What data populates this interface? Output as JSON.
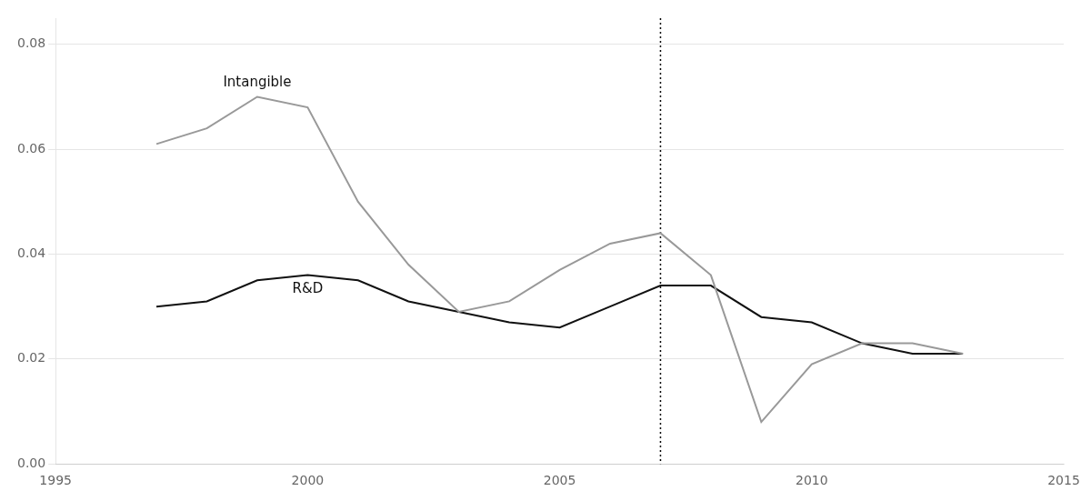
{
  "chart_data": {
    "type": "line",
    "x": [
      1997,
      1998,
      1999,
      2000,
      2001,
      2002,
      2003,
      2004,
      2005,
      2006,
      2007,
      2008,
      2009,
      2010,
      2011,
      2012,
      2013
    ],
    "series": [
      {
        "name": "Intangible",
        "color": "#999999",
        "values": [
          0.061,
          0.064,
          0.07,
          0.068,
          0.05,
          0.038,
          0.029,
          0.031,
          0.037,
          0.042,
          0.044,
          0.036,
          0.008,
          0.019,
          0.023,
          0.023,
          0.021
        ]
      },
      {
        "name": "R&D",
        "color": "#111111",
        "values": [
          0.03,
          0.031,
          0.035,
          0.036,
          0.035,
          0.031,
          0.029,
          0.027,
          0.026,
          0.03,
          0.034,
          0.034,
          0.028,
          0.027,
          0.023,
          0.021,
          0.021
        ]
      }
    ],
    "vlines": [
      {
        "x": 2007,
        "color": "#000000",
        "line_style": "dotted"
      }
    ],
    "xlim": [
      1995,
      2015
    ],
    "xticks": [
      1995,
      2000,
      2005,
      2010,
      2015
    ],
    "ylim": [
      0.0,
      0.085
    ],
    "yticks": [
      {
        "value": 0,
        "label": "0.00"
      },
      0.02,
      0.04,
      0.06,
      0.08
    ],
    "grid": "y"
  }
}
